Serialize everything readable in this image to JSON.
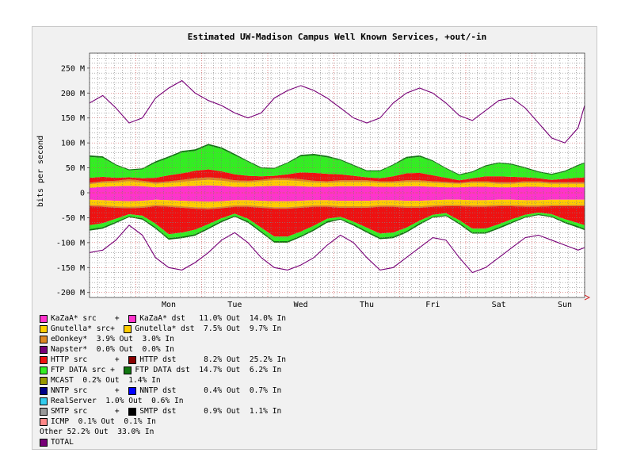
{
  "chart_data": {
    "type": "area",
    "title": "Estimated UW-Madison Campus Well Known Services, +out/-in",
    "ylabel": "bits per second",
    "xlabel": "",
    "ylim": [
      -210,
      280
    ],
    "ytick_values": [
      250,
      200,
      150,
      100,
      50,
      0,
      -50,
      -100,
      -150,
      -200
    ],
    "ytick_labels": [
      "250 M",
      "200 M",
      "150 M",
      "100 M",
      "50 M",
      "0",
      "-50 M",
      "-100 M",
      "-150 M",
      "-200 M"
    ],
    "day_labels": [
      "Mon",
      "Tue",
      "Wed",
      "Thu",
      "Fri",
      "Sat",
      "Sun"
    ],
    "xlim": [
      -1.2,
      6.3
    ],
    "grid": true,
    "legend_position": "bottom",
    "x": [
      -1.2,
      -1.0,
      -0.8,
      -0.6,
      -0.4,
      -0.2,
      0.0,
      0.2,
      0.4,
      0.6,
      0.8,
      1.0,
      1.2,
      1.4,
      1.6,
      1.8,
      2.0,
      2.2,
      2.4,
      2.6,
      2.8,
      3.0,
      3.2,
      3.4,
      3.6,
      3.8,
      4.0,
      4.2,
      4.4,
      4.6,
      4.8,
      5.0,
      5.2,
      5.4,
      5.6,
      5.8,
      6.0,
      6.2,
      6.3
    ],
    "out_series": [
      {
        "name": "KaZaA* src + KaZaA* dst",
        "color": "#ff33cc",
        "values": [
          10,
          12,
          13,
          14,
          13,
          11,
          12,
          13,
          14,
          15,
          14,
          12,
          12,
          13,
          14,
          14,
          13,
          12,
          12,
          13,
          13,
          13,
          12,
          12,
          13,
          13,
          12,
          11,
          11,
          12,
          12,
          11,
          11,
          12,
          12,
          11,
          11,
          11,
          11
        ]
      },
      {
        "name": "Gnutella* src + Gnutella* dst",
        "color": "#ffcc00",
        "values": [
          7,
          8,
          8,
          9,
          8,
          7,
          8,
          9,
          10,
          11,
          10,
          9,
          9,
          10,
          11,
          11,
          10,
          9,
          8,
          9,
          9,
          9,
          8,
          8,
          9,
          9,
          8,
          8,
          7,
          8,
          8,
          7,
          7,
          8,
          8,
          7,
          7,
          7,
          7
        ]
      },
      {
        "name": "eDonkey*",
        "color": "#dd8822",
        "values": [
          3,
          3,
          3,
          4,
          3,
          3,
          3,
          4,
          5,
          5,
          5,
          4,
          3,
          3,
          4,
          4,
          4,
          3,
          3,
          3,
          3,
          3,
          3,
          3,
          3,
          3,
          3,
          3,
          2,
          3,
          3,
          3,
          3,
          3,
          3,
          3,
          3,
          3,
          3
        ]
      },
      {
        "name": "HTTP src + HTTP dst",
        "color": "#ee1111",
        "values": [
          10,
          9,
          6,
          4,
          5,
          9,
          12,
          13,
          15,
          16,
          14,
          12,
          10,
          7,
          5,
          8,
          14,
          16,
          15,
          12,
          9,
          6,
          6,
          10,
          14,
          15,
          12,
          8,
          5,
          6,
          10,
          12,
          11,
          8,
          6,
          5,
          7,
          9,
          10
        ]
      },
      {
        "name": "FTP DATA src + FTP DATA dst",
        "color": "#33ee22",
        "values": [
          42,
          38,
          25,
          14,
          18,
          30,
          35,
          42,
          40,
          48,
          45,
          38,
          28,
          16,
          14,
          22,
          32,
          35,
          33,
          28,
          20,
          12,
          14,
          22,
          30,
          32,
          28,
          18,
          10,
          12,
          20,
          26,
          24,
          18,
          12,
          10,
          14,
          24,
          28
        ]
      },
      {
        "name": "FTP DATA dst",
        "color": "#117711",
        "values": [
          3,
          3,
          2,
          2,
          2,
          3,
          3,
          3,
          3,
          3,
          3,
          3,
          2,
          2,
          2,
          2,
          3,
          3,
          3,
          2,
          2,
          2,
          2,
          2,
          3,
          3,
          2,
          2,
          2,
          2,
          2,
          2,
          2,
          2,
          2,
          2,
          2,
          2,
          2
        ]
      }
    ],
    "in_series": [
      {
        "name": "KaZaA* src + KaZaA* dst",
        "color": "#ff33cc",
        "values": [
          14,
          15,
          16,
          17,
          16,
          14,
          15,
          16,
          17,
          18,
          17,
          15,
          15,
          16,
          17,
          17,
          16,
          15,
          15,
          16,
          16,
          16,
          15,
          15,
          16,
          16,
          15,
          14,
          14,
          15,
          15,
          14,
          14,
          15,
          15,
          14,
          14,
          14,
          14
        ]
      },
      {
        "name": "Gnutella* src + Gnutella* dst",
        "color": "#ffcc00",
        "values": [
          10,
          10,
          11,
          11,
          11,
          10,
          10,
          11,
          12,
          12,
          11,
          10,
          10,
          11,
          12,
          12,
          11,
          10,
          10,
          11,
          11,
          11,
          10,
          10,
          11,
          11,
          10,
          10,
          10,
          10,
          10,
          10,
          10,
          10,
          10,
          10,
          10,
          10,
          10
        ]
      },
      {
        "name": "eDonkey*",
        "color": "#dd8822",
        "values": [
          3,
          3,
          3,
          3,
          3,
          3,
          3,
          3,
          3,
          3,
          3,
          3,
          3,
          3,
          3,
          3,
          3,
          3,
          3,
          3,
          3,
          3,
          3,
          3,
          3,
          3,
          3,
          3,
          3,
          3,
          3,
          3,
          3,
          3,
          3,
          3,
          3,
          3,
          3
        ]
      },
      {
        "name": "HTTP src + HTTP dst",
        "color": "#ee1111",
        "values": [
          38,
          33,
          22,
          12,
          16,
          35,
          55,
          50,
          42,
          30,
          20,
          14,
          24,
          40,
          56,
          56,
          48,
          38,
          24,
          18,
          28,
          40,
          54,
          52,
          40,
          26,
          16,
          14,
          28,
          44,
          44,
          36,
          26,
          16,
          12,
          16,
          26,
          34,
          38
        ]
      },
      {
        "name": "FTP DATA src + FTP DATA dst",
        "color": "#33ee22",
        "values": [
          8,
          8,
          6,
          4,
          5,
          7,
          8,
          8,
          9,
          7,
          5,
          4,
          5,
          7,
          9,
          9,
          8,
          7,
          5,
          4,
          5,
          7,
          8,
          8,
          7,
          5,
          4,
          4,
          5,
          7,
          7,
          6,
          5,
          4,
          3,
          4,
          5,
          6,
          7
        ]
      },
      {
        "name": "FTP DATA dst",
        "color": "#117711",
        "values": [
          3,
          3,
          3,
          2,
          3,
          3,
          3,
          3,
          3,
          3,
          3,
          2,
          3,
          3,
          3,
          3,
          3,
          3,
          3,
          2,
          3,
          3,
          3,
          3,
          3,
          3,
          2,
          2,
          3,
          3,
          3,
          3,
          3,
          2,
          2,
          2,
          3,
          3,
          3
        ]
      }
    ],
    "total_out": [
      180,
      195,
      170,
      140,
      150,
      190,
      210,
      225,
      200,
      185,
      175,
      160,
      150,
      160,
      190,
      205,
      215,
      205,
      190,
      170,
      150,
      140,
      150,
      180,
      200,
      210,
      200,
      180,
      155,
      145,
      165,
      185,
      190,
      170,
      140,
      110,
      100,
      130,
      175
    ],
    "total_in": [
      -120,
      -115,
      -95,
      -65,
      -85,
      -130,
      -150,
      -155,
      -140,
      -120,
      -95,
      -80,
      -100,
      -130,
      -150,
      -155,
      -145,
      -130,
      -105,
      -85,
      -100,
      -130,
      -155,
      -150,
      -130,
      -110,
      -90,
      -95,
      -130,
      -160,
      -150,
      -130,
      -110,
      -90,
      -85,
      -95,
      -105,
      -115,
      -110
    ],
    "legend": [
      {
        "color": "#ff33cc",
        "text": "KaZaA* src    +  "
      },
      {
        "color": "#ff33cc",
        "text": "KaZaA* dst   11.0% Out  14.0% In"
      },
      {
        "color": "#ffcc00",
        "text": "Gnutella* src+  "
      },
      {
        "color": "#ffcc00",
        "text": "Gnutella* dst  7.5% Out  9.7% In"
      },
      {
        "color": "#dd8822",
        "text": "eDonkey*  3.9% Out  3.0% In"
      },
      {
        "color": "#770077",
        "text": "Napster*  0.0% Out  0.0% In"
      },
      {
        "color": "#ee1111",
        "text": "HTTP src      +  "
      },
      {
        "color": "#880000",
        "text": "HTTP dst      8.2% Out  25.2% In"
      },
      {
        "color": "#33ee22",
        "text": "FTP DATA src +  "
      },
      {
        "color": "#117711",
        "text": "FTP DATA dst  14.7% Out  6.2% In"
      },
      {
        "color": "#999900",
        "text": "MCAST  0.2% Out  1.4% In"
      },
      {
        "color": "#000088",
        "text": "NNTP src      +  "
      },
      {
        "color": "#0000ff",
        "text": "NNTP dst      0.4% Out  0.7% In"
      },
      {
        "color": "#33ccee",
        "text": "RealServer  1.0% Out  0.6% In"
      },
      {
        "color": "#999999",
        "text": "SMTP src      +  "
      },
      {
        "color": "#000000",
        "text": "SMTP dst      0.9% Out  1.1% In"
      },
      {
        "color": "#ff8888",
        "text": "ICMP  0.1% Out  0.1% In"
      },
      {
        "color": "",
        "text": "Other 52.2% Out  33.0% In"
      },
      {
        "color": "#770077",
        "text": "TOTAL"
      }
    ]
  }
}
